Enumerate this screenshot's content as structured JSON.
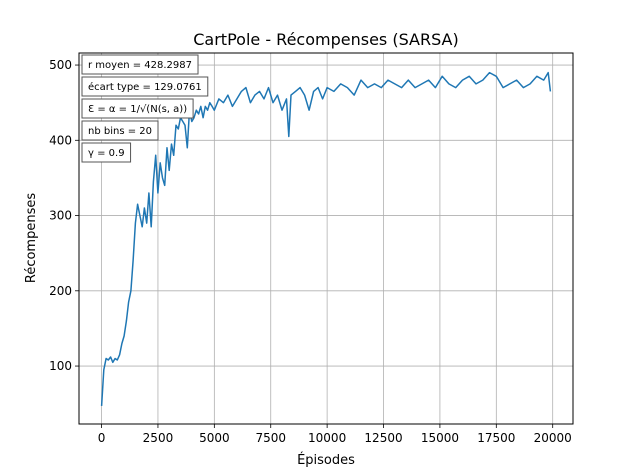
{
  "chart_data": {
    "type": "line",
    "title": "CartPole - Récompenses (SARSA)",
    "xlabel": "Épisodes",
    "ylabel": "Récompenses",
    "xlim": [
      -1000,
      20900
    ],
    "ylim": [
      23,
      516
    ],
    "xticks": [
      0,
      2500,
      5000,
      7500,
      10000,
      12500,
      15000,
      17500,
      20000
    ],
    "xtick_labels": [
      "0",
      "2500",
      "5000",
      "7500",
      "10000",
      "12500",
      "15000",
      "17500",
      "20000"
    ],
    "yticks": [
      100,
      200,
      300,
      400,
      500
    ],
    "ytick_labels": [
      "100",
      "200",
      "300",
      "400",
      "500"
    ],
    "grid": true,
    "line_color": "#1f77b4",
    "annotations": [
      "r moyen = 428.2987",
      "écart type = 129.0761",
      "Ɛ = α = 1/√(N(s, a))",
      "nb bins = 20",
      "γ = 0.9"
    ],
    "series": [
      {
        "name": "SARSA",
        "x": [
          0,
          100,
          200,
          300,
          400,
          500,
          600,
          700,
          800,
          900,
          1000,
          1100,
          1200,
          1300,
          1400,
          1500,
          1600,
          1700,
          1800,
          1900,
          2000,
          2100,
          2200,
          2300,
          2400,
          2500,
          2600,
          2700,
          2800,
          2900,
          3000,
          3100,
          3200,
          3300,
          3400,
          3500,
          3600,
          3700,
          3800,
          3900,
          4000,
          4100,
          4200,
          4300,
          4400,
          4500,
          4600,
          4700,
          4800,
          4900,
          5000,
          5200,
          5400,
          5600,
          5800,
          6000,
          6200,
          6400,
          6600,
          6800,
          7000,
          7200,
          7400,
          7600,
          7800,
          8000,
          8200,
          8300,
          8400,
          8600,
          8800,
          9000,
          9200,
          9400,
          9600,
          9800,
          10000,
          10300,
          10600,
          10900,
          11200,
          11500,
          11800,
          12100,
          12400,
          12700,
          13000,
          13300,
          13600,
          13900,
          14200,
          14500,
          14800,
          15100,
          15400,
          15700,
          16000,
          16300,
          16600,
          16900,
          17200,
          17500,
          17800,
          18100,
          18400,
          18700,
          19000,
          19300,
          19600,
          19800,
          19900
        ],
        "y": [
          47,
          95,
          110,
          108,
          112,
          105,
          110,
          108,
          115,
          130,
          140,
          160,
          185,
          200,
          240,
          290,
          315,
          300,
          285,
          310,
          290,
          330,
          285,
          345,
          380,
          330,
          370,
          350,
          340,
          390,
          360,
          395,
          380,
          420,
          415,
          430,
          425,
          420,
          390,
          440,
          425,
          430,
          440,
          435,
          445,
          430,
          445,
          440,
          450,
          445,
          440,
          455,
          450,
          460,
          445,
          455,
          465,
          470,
          450,
          460,
          465,
          455,
          470,
          450,
          460,
          440,
          455,
          405,
          460,
          465,
          470,
          460,
          440,
          465,
          470,
          455,
          470,
          465,
          475,
          470,
          460,
          480,
          470,
          475,
          470,
          480,
          475,
          470,
          480,
          470,
          475,
          480,
          470,
          485,
          475,
          470,
          480,
          485,
          475,
          480,
          490,
          485,
          470,
          475,
          480,
          470,
          475,
          485,
          480,
          490,
          465
        ]
      }
    ]
  }
}
